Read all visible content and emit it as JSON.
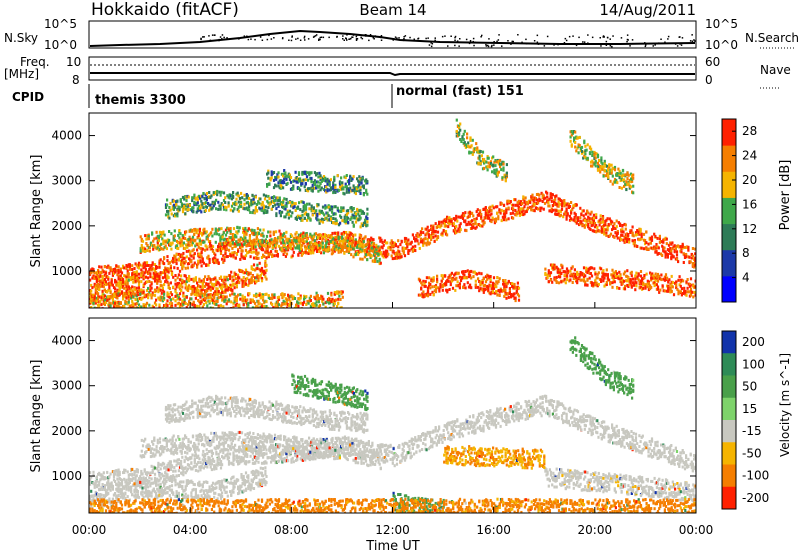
{
  "header": {
    "station": "Hokkaido (fitACF)",
    "beam": "Beam 14",
    "date": "14/Aug/2011"
  },
  "top_panels": {
    "nsky_label": "N.Sky",
    "nsearch_label": "N.Search",
    "count_axis": [
      "10^5",
      "10^0"
    ],
    "freq_label_1": "Freq.",
    "freq_label_2": "[MHz]",
    "freq_ticks": [
      "10",
      "8"
    ],
    "nave_label": "Nave",
    "nave_ticks": [
      "60",
      "0"
    ],
    "cpid_label": "CPID",
    "cpid_segments": [
      {
        "label": "themis 3300",
        "start_hour": 0
      },
      {
        "label": "normal (fast) 151",
        "start_hour": 12
      }
    ]
  },
  "chart_data": [
    {
      "type": "heatmap",
      "title": "",
      "xlabel": "Time UT",
      "ylabel": "Slant Range [km]",
      "x_ticks": [
        "00:00",
        "04:00",
        "08:00",
        "12:00",
        "16:00",
        "20:00",
        "00:00"
      ],
      "x_range_hours": [
        0,
        24
      ],
      "y_ticks": [
        1000,
        2000,
        3000,
        4000
      ],
      "ylim": [
        180,
        4500
      ],
      "colorbar": {
        "label": "Power [dB]",
        "ticks": [
          4,
          8,
          12,
          16,
          20,
          24,
          28
        ],
        "range": [
          0,
          30
        ],
        "colors": [
          "#0000ff",
          "#1c39a8",
          "#2e7b57",
          "#3fa84a",
          "#f5b400",
          "#f57e00",
          "#ff2000"
        ]
      },
      "bands": [
        {
          "t": [
            0,
            2,
            4,
            6,
            8,
            10,
            12
          ],
          "r": [
            900,
            1000,
            1300,
            1500,
            1550,
            1700,
            1500
          ],
          "level": 26
        },
        {
          "t": [
            0,
            1.5,
            3,
            5,
            7
          ],
          "r": [
            500,
            700,
            750,
            700,
            1050
          ],
          "level": 24
        },
        {
          "t": [
            2,
            4,
            6,
            8,
            10,
            11.5
          ],
          "r": [
            1650,
            1750,
            1800,
            1700,
            1600,
            1400
          ],
          "level": 20
        },
        {
          "t": [
            3,
            5,
            7,
            9,
            11
          ],
          "r": [
            2400,
            2600,
            2500,
            2300,
            2200
          ],
          "level": 14
        },
        {
          "t": [
            7,
            9,
            11
          ],
          "r": [
            3100,
            3000,
            2900
          ],
          "level": 12
        },
        {
          "t": [
            12,
            14,
            16,
            18,
            20,
            22,
            24
          ],
          "r": [
            1450,
            2000,
            2300,
            2600,
            2100,
            1700,
            1300
          ],
          "level": 27
        },
        {
          "t": [
            18,
            20,
            22,
            24
          ],
          "r": [
            1000,
            900,
            800,
            650
          ],
          "level": 26
        },
        {
          "t": [
            13,
            15,
            17
          ],
          "r": [
            650,
            850,
            550
          ],
          "level": 27
        },
        {
          "t": [
            14.5,
            15.5,
            16.5
          ],
          "r": [
            4200,
            3500,
            3200
          ],
          "level": 18
        },
        {
          "t": [
            19,
            20.5,
            21.5
          ],
          "r": [
            4000,
            3200,
            2950
          ],
          "level": 18
        },
        {
          "t": [
            0,
            2,
            4,
            6,
            8,
            10
          ],
          "r": [
            330,
            320,
            300,
            330,
            320,
            380
          ],
          "level": 22
        }
      ]
    },
    {
      "type": "heatmap",
      "title": "",
      "xlabel": "Time UT",
      "ylabel": "Slant Range [km]",
      "x_ticks": [
        "00:00",
        "04:00",
        "08:00",
        "12:00",
        "16:00",
        "20:00",
        "00:00"
      ],
      "x_range_hours": [
        0,
        24
      ],
      "y_ticks": [
        1000,
        2000,
        3000,
        4000
      ],
      "ylim": [
        180,
        4500
      ],
      "colorbar": {
        "label": "Velocity [m s^-1]",
        "ticks": [
          200,
          100,
          50,
          15,
          -15,
          -50,
          -100,
          -200
        ],
        "colors": [
          "#1133aa",
          "#2e8b57",
          "#49a04a",
          "#7ed36b",
          "#c8c8c0",
          "#f5b400",
          "#f57e00",
          "#ff2000"
        ]
      },
      "bands": [
        {
          "t": [
            0,
            2,
            4,
            6,
            8,
            10,
            12
          ],
          "r": [
            900,
            1000,
            1300,
            1500,
            1550,
            1700,
            1500
          ],
          "level": 0
        },
        {
          "t": [
            0,
            1.5,
            3,
            5,
            7
          ],
          "r": [
            500,
            700,
            750,
            700,
            1050
          ],
          "level": 0
        },
        {
          "t": [
            2,
            4,
            6,
            8,
            10,
            11.5
          ],
          "r": [
            1650,
            1750,
            1800,
            1700,
            1600,
            1400
          ],
          "level": 0
        },
        {
          "t": [
            3,
            5,
            7,
            9,
            11
          ],
          "r": [
            2400,
            2600,
            2500,
            2300,
            2200
          ],
          "level": 0
        },
        {
          "t": [
            8,
            9.5,
            11
          ],
          "r": [
            3100,
            2900,
            2700
          ],
          "level": 60
        },
        {
          "t": [
            12,
            14,
            16,
            18,
            20,
            22,
            24
          ],
          "r": [
            1450,
            2000,
            2300,
            2600,
            2100,
            1700,
            1300
          ],
          "level": 0
        },
        {
          "t": [
            18,
            20,
            22,
            24
          ],
          "r": [
            1000,
            900,
            800,
            650
          ],
          "level": -5
        },
        {
          "t": [
            12,
            13,
            14
          ],
          "r": [
            450,
            350,
            300
          ],
          "level": 70
        },
        {
          "t": [
            19,
            20.5,
            21.5
          ],
          "r": [
            4000,
            3200,
            2950
          ],
          "level": 60
        },
        {
          "t": [
            14,
            16,
            18
          ],
          "r": [
            1500,
            1450,
            1400
          ],
          "level": -30
        },
        {
          "t": [
            0,
            4,
            8,
            12,
            16,
            20,
            24
          ],
          "r": [
            300,
            310,
            300,
            320,
            310,
            300,
            320
          ],
          "level": -40
        }
      ]
    }
  ]
}
